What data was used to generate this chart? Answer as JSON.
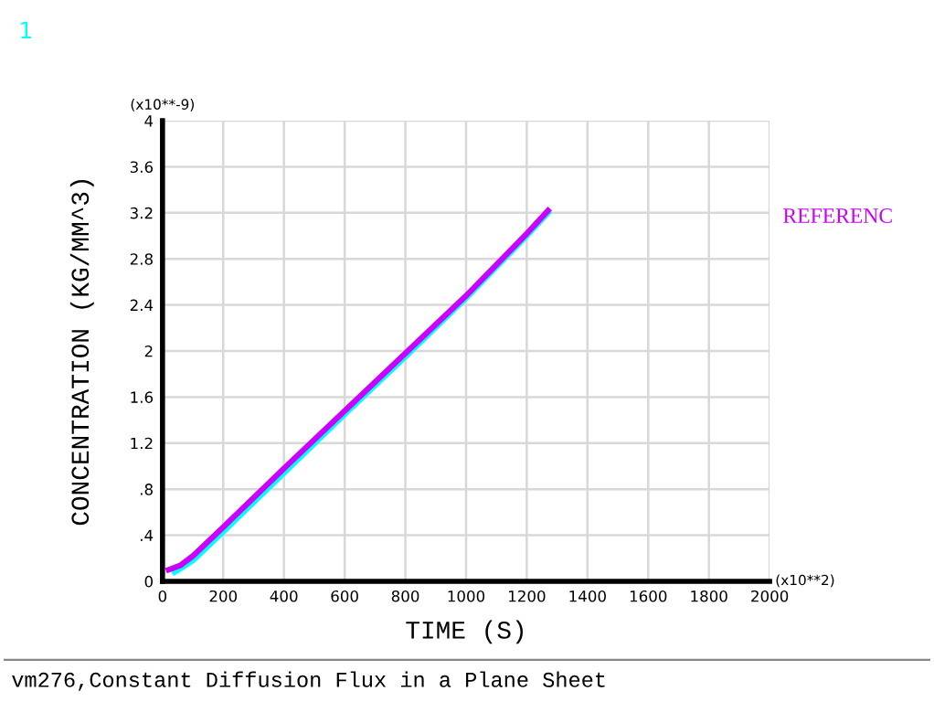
{
  "chart_data": {
    "type": "line",
    "title": "vm276,Constant Diffusion Flux in a Plane Sheet",
    "xlabel": "TIME (S)",
    "ylabel": "CONCENTRATION (KG/MM^3)",
    "annotations": [
      "1",
      "(x10**-9)",
      "(x10**2)"
    ],
    "x": [
      20,
      60,
      100,
      200,
      400,
      600,
      800,
      1000,
      1200,
      1270
    ],
    "series": [
      {
        "color": "#00ffff",
        "x": [
          40,
          60,
          100,
          200,
          400,
          600,
          800,
          1000,
          1200,
          1270
        ],
        "values": [
          0.08,
          0.11,
          0.18,
          0.43,
          0.94,
          1.45,
          1.95,
          2.46,
          3.0,
          3.2
        ]
      },
      {
        "name": "REFERENC",
        "color": "#cc00ff",
        "values": [
          0.1,
          0.14,
          0.22,
          0.47,
          0.98,
          1.48,
          1.98,
          2.48,
          3.02,
          3.22
        ]
      }
    ],
    "xlim": [
      0,
      2000
    ],
    "xticks": [
      0,
      200,
      400,
      600,
      800,
      1000,
      1200,
      1400,
      1600,
      1800,
      2000
    ],
    "ylim": [
      0,
      4
    ],
    "yticks": [
      0,
      {
        "value": 0.4,
        "label": ".4"
      },
      {
        "value": 0.8,
        "label": ".8"
      },
      1.2,
      1.6,
      2,
      2.4,
      2.8,
      3.2,
      3.6,
      4
    ],
    "grid": true,
    "legend": "right",
    "marker": "none",
    "line_style": "solid"
  }
}
